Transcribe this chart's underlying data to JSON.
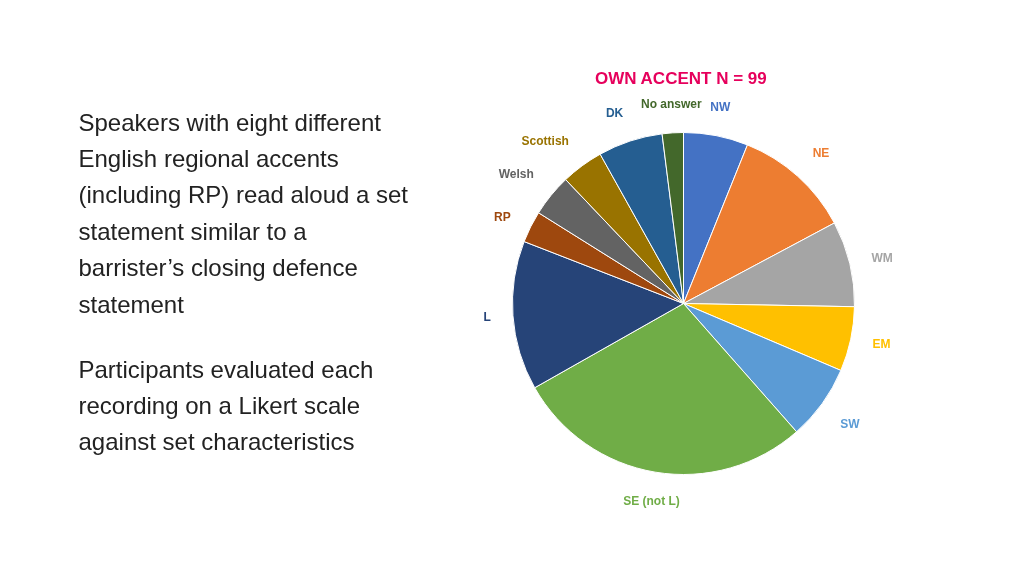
{
  "chart_data": {
    "type": "pie",
    "title": "OWN ACCENT  N = 99",
    "categories": [
      "NW",
      "NE",
      "WM",
      "EM",
      "SW",
      "SE (not L)",
      "L",
      "RP",
      "Welsh",
      "Scottish",
      "DK",
      "No answer"
    ],
    "values": [
      6.1,
      11.1,
      8.1,
      6.1,
      7.1,
      28.3,
      14.1,
      3.0,
      4.0,
      4.0,
      6.1,
      2.0
    ],
    "colors": [
      "#4472c4",
      "#ed7d31",
      "#a5a5a5",
      "#ffc000",
      "#5b9bd5",
      "#70ad47",
      "#264478",
      "#9e480e",
      "#636363",
      "#997300",
      "#255e91",
      "#43682b"
    ],
    "annotations": [
      "Speakers with eight different English regional accents (including RP) read aloud a set statement similar to a barrister’s closing defence statement",
      "Participants evaluated each recording on a Likert scale against set characteristics"
    ]
  }
}
